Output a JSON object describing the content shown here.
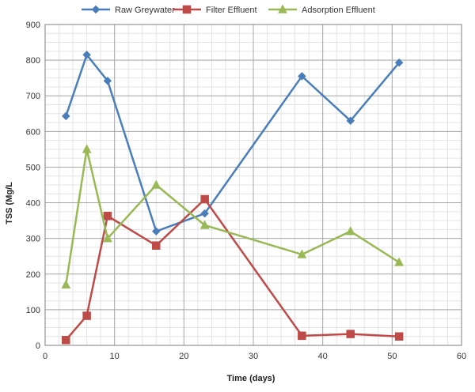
{
  "chart_data": {
    "type": "line",
    "title": "",
    "xlabel": "Time (days)",
    "ylabel": "TSS (Mg/L",
    "xlim": [
      0,
      60
    ],
    "ylim": [
      0,
      900
    ],
    "x_major_ticks": [
      0,
      10,
      20,
      30,
      40,
      50,
      60
    ],
    "x_minor_step": 2,
    "y_major_ticks": [
      0,
      100,
      200,
      300,
      400,
      500,
      600,
      700,
      800,
      900
    ],
    "y_minor_step": 25,
    "grid": true,
    "legend_position": "top",
    "series": [
      {
        "name": "Raw Greywater",
        "color": "#4a7ebb",
        "marker": "diamond",
        "x": [
          3,
          6,
          9,
          16,
          23,
          37,
          44,
          51
        ],
        "y": [
          643,
          815,
          742,
          320,
          370,
          755,
          630,
          793
        ]
      },
      {
        "name": "Filter Effluent",
        "color": "#be4b48",
        "marker": "square",
        "x": [
          3,
          6,
          9,
          16,
          23,
          37,
          44,
          51
        ],
        "y": [
          15,
          83,
          363,
          280,
          410,
          27,
          32,
          25
        ]
      },
      {
        "name": "Adsorption Effluent",
        "color": "#98b954",
        "marker": "triangle",
        "x": [
          3,
          6,
          9,
          16,
          23,
          37,
          44,
          51
        ],
        "y": [
          170,
          550,
          300,
          450,
          337,
          255,
          320,
          233
        ]
      }
    ]
  }
}
